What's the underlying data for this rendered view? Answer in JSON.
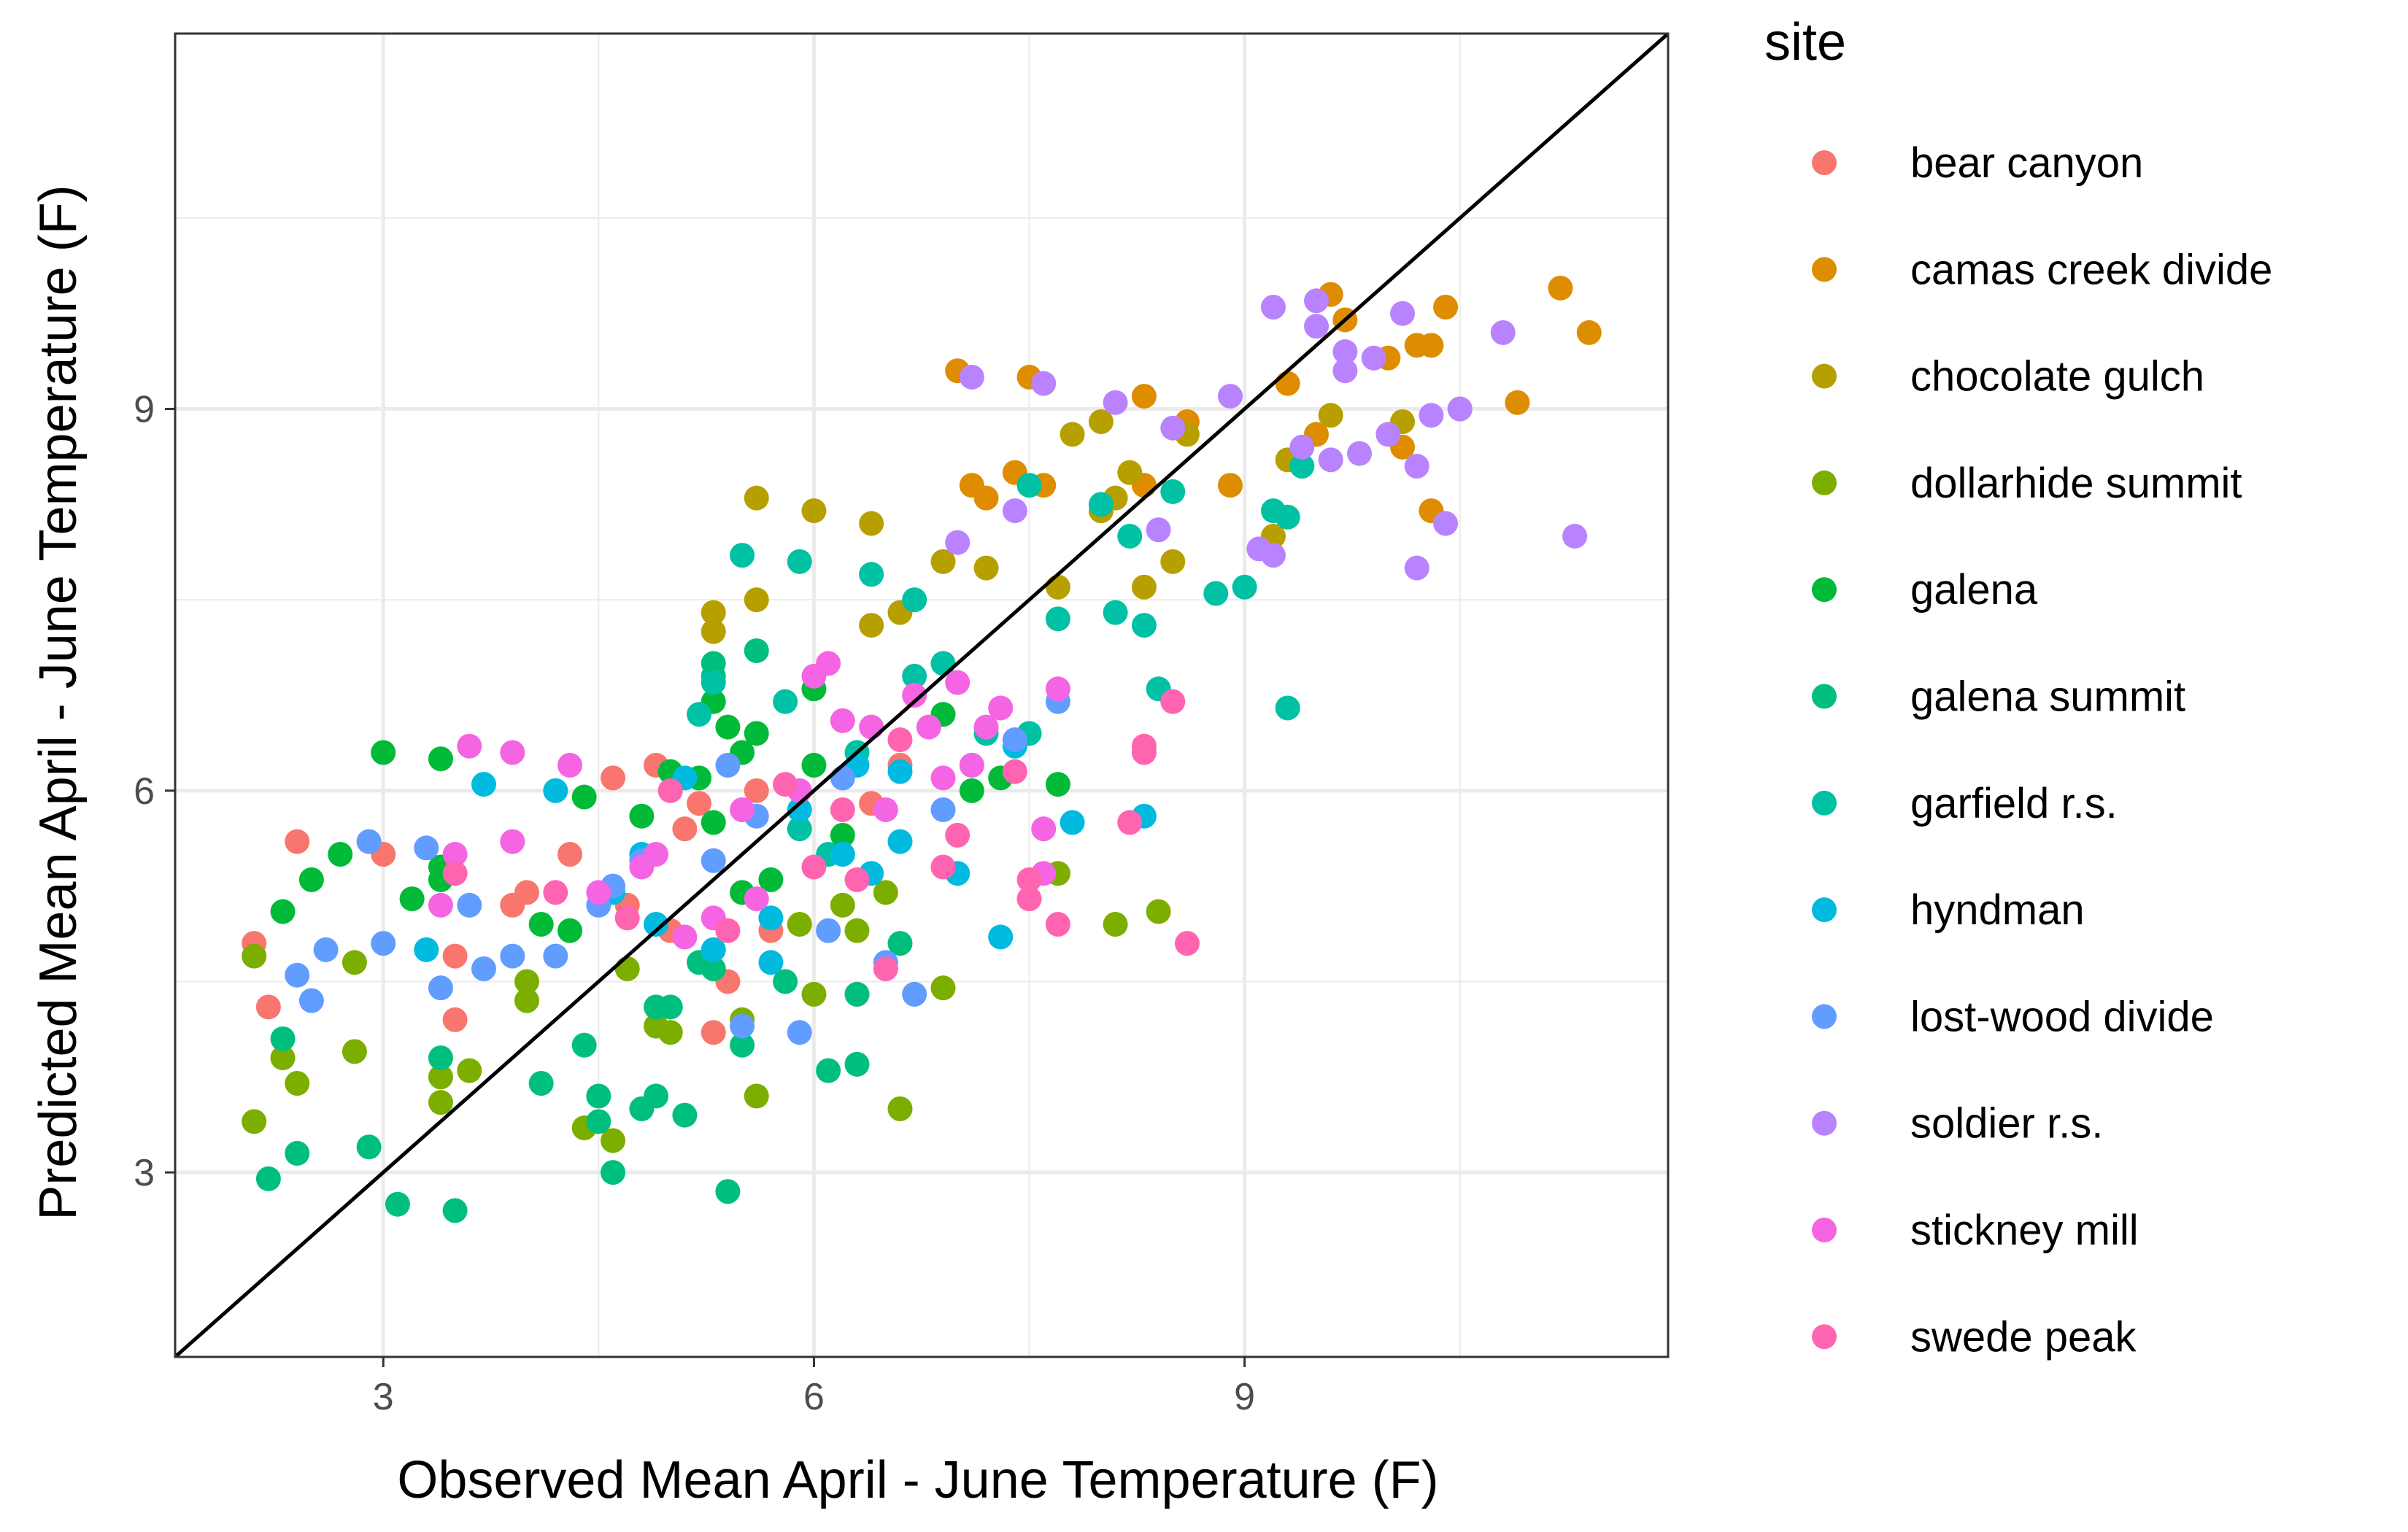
{
  "chart_data": {
    "type": "scatter",
    "xlabel": "Observed Mean April - June Temperature (F)",
    "ylabel": "Predicted Mean April - June Temperature (F)",
    "xlim": [
      1.55,
      11.95
    ],
    "ylim": [
      1.55,
      11.95
    ],
    "x_ticks": [
      3,
      6,
      9
    ],
    "y_ticks": [
      3,
      6,
      9
    ],
    "grid": true,
    "reference_line": "y = x",
    "legend_position": "right",
    "legend_title": "site",
    "series": [
      {
        "name": "bear canyon",
        "color": "#F8766D",
        "points": [
          [
            2.1,
            4.8
          ],
          [
            2.2,
            4.3
          ],
          [
            2.4,
            5.6
          ],
          [
            3.0,
            5.5
          ],
          [
            3.5,
            4.2
          ],
          [
            3.5,
            4.7
          ],
          [
            3.9,
            5.1
          ],
          [
            4.0,
            5.2
          ],
          [
            4.3,
            5.5
          ],
          [
            4.6,
            6.1
          ],
          [
            4.7,
            5.1
          ],
          [
            4.9,
            6.2
          ],
          [
            5.0,
            4.9
          ],
          [
            5.1,
            5.7
          ],
          [
            5.2,
            5.9
          ],
          [
            5.3,
            4.1
          ],
          [
            5.4,
            4.5
          ],
          [
            5.6,
            6.0
          ],
          [
            5.7,
            4.9
          ],
          [
            6.3,
            4.4
          ],
          [
            6.4,
            5.9
          ],
          [
            6.6,
            6.2
          ]
        ]
      },
      {
        "name": "camas creek divide",
        "color": "#DE8C00",
        "points": [
          [
            7.0,
            9.3
          ],
          [
            7.1,
            8.4
          ],
          [
            7.2,
            8.3
          ],
          [
            7.4,
            8.5
          ],
          [
            7.5,
            9.25
          ],
          [
            7.6,
            8.4
          ],
          [
            8.0,
            8.2
          ],
          [
            8.3,
            9.1
          ],
          [
            8.3,
            8.4
          ],
          [
            8.6,
            8.9
          ],
          [
            8.9,
            8.4
          ],
          [
            9.3,
            9.2
          ],
          [
            9.5,
            8.8
          ],
          [
            9.6,
            9.9
          ],
          [
            9.7,
            9.7
          ],
          [
            10.0,
            9.4
          ],
          [
            10.1,
            8.7
          ],
          [
            10.2,
            9.5
          ],
          [
            10.3,
            9.5
          ],
          [
            10.4,
            9.8
          ],
          [
            10.3,
            8.2
          ],
          [
            10.5,
            9.0
          ],
          [
            10.9,
            9.05
          ],
          [
            11.2,
            9.95
          ],
          [
            11.4,
            9.6
          ]
        ]
      },
      {
        "name": "chocolate gulch",
        "color": "#B79F00",
        "points": [
          [
            5.3,
            7.4
          ],
          [
            5.3,
            7.25
          ],
          [
            5.6,
            7.5
          ],
          [
            5.6,
            8.3
          ],
          [
            6.0,
            8.2
          ],
          [
            6.4,
            8.1
          ],
          [
            6.4,
            7.3
          ],
          [
            6.6,
            7.4
          ],
          [
            6.9,
            7.8
          ],
          [
            7.2,
            7.75
          ],
          [
            7.7,
            7.6
          ],
          [
            7.8,
            8.8
          ],
          [
            8.0,
            8.2
          ],
          [
            8.0,
            8.9
          ],
          [
            8.1,
            8.3
          ],
          [
            8.2,
            8.5
          ],
          [
            8.3,
            7.6
          ],
          [
            8.5,
            7.8
          ],
          [
            8.6,
            8.8
          ],
          [
            9.2,
            8.0
          ],
          [
            9.3,
            8.6
          ],
          [
            9.6,
            8.95
          ],
          [
            10.1,
            8.9
          ]
        ]
      },
      {
        "name": "dollarhide summit",
        "color": "#7CAE00",
        "points": [
          [
            2.1,
            3.4
          ],
          [
            2.1,
            4.7
          ],
          [
            2.3,
            3.9
          ],
          [
            2.4,
            3.7
          ],
          [
            2.8,
            4.65
          ],
          [
            2.8,
            3.95
          ],
          [
            3.4,
            3.55
          ],
          [
            3.4,
            3.75
          ],
          [
            3.6,
            3.8
          ],
          [
            4.0,
            4.35
          ],
          [
            4.0,
            4.5
          ],
          [
            4.4,
            3.35
          ],
          [
            4.6,
            3.25
          ],
          [
            4.7,
            4.6
          ],
          [
            4.9,
            4.15
          ],
          [
            5.0,
            4.1
          ],
          [
            5.5,
            4.2
          ],
          [
            5.6,
            3.6
          ],
          [
            5.9,
            4.95
          ],
          [
            6.0,
            4.4
          ],
          [
            6.2,
            5.1
          ],
          [
            6.3,
            4.9
          ],
          [
            6.5,
            5.2
          ],
          [
            6.6,
            3.5
          ],
          [
            6.9,
            4.45
          ],
          [
            7.7,
            5.35
          ],
          [
            8.1,
            4.95
          ],
          [
            8.4,
            5.05
          ]
        ]
      },
      {
        "name": "galena",
        "color": "#00BA38",
        "points": [
          [
            2.3,
            5.05
          ],
          [
            2.5,
            5.3
          ],
          [
            2.7,
            5.5
          ],
          [
            3.0,
            6.3
          ],
          [
            3.2,
            5.15
          ],
          [
            3.4,
            5.4
          ],
          [
            3.4,
            6.25
          ],
          [
            3.4,
            5.3
          ],
          [
            4.4,
            5.95
          ],
          [
            4.8,
            5.8
          ],
          [
            5.0,
            6.15
          ],
          [
            5.2,
            6.1
          ],
          [
            5.3,
            6.7
          ],
          [
            5.3,
            5.75
          ],
          [
            5.4,
            6.5
          ],
          [
            5.5,
            6.3
          ],
          [
            5.6,
            6.45
          ],
          [
            5.5,
            5.2
          ],
          [
            5.7,
            5.3
          ],
          [
            6.0,
            6.2
          ],
          [
            6.0,
            6.8
          ],
          [
            6.2,
            5.65
          ],
          [
            6.9,
            6.6
          ],
          [
            7.1,
            6.0
          ],
          [
            7.3,
            6.1
          ],
          [
            7.7,
            6.05
          ],
          [
            4.1,
            4.95
          ],
          [
            4.3,
            4.9
          ]
        ]
      },
      {
        "name": "galena summit",
        "color": "#00BF7D",
        "points": [
          [
            2.2,
            2.95
          ],
          [
            2.3,
            4.05
          ],
          [
            2.4,
            3.15
          ],
          [
            2.9,
            3.2
          ],
          [
            3.1,
            2.75
          ],
          [
            3.4,
            3.9
          ],
          [
            3.5,
            2.7
          ],
          [
            4.1,
            3.7
          ],
          [
            4.4,
            4.0
          ],
          [
            4.5,
            3.6
          ],
          [
            4.5,
            3.4
          ],
          [
            4.6,
            3.0
          ],
          [
            4.8,
            3.5
          ],
          [
            4.9,
            3.6
          ],
          [
            4.9,
            4.3
          ],
          [
            5.0,
            4.3
          ],
          [
            5.1,
            3.45
          ],
          [
            5.2,
            4.65
          ],
          [
            5.3,
            4.6
          ],
          [
            5.4,
            2.85
          ],
          [
            5.5,
            4.0
          ],
          [
            5.8,
            4.5
          ],
          [
            6.1,
            3.8
          ],
          [
            6.3,
            4.4
          ],
          [
            6.3,
            3.85
          ],
          [
            6.6,
            4.8
          ],
          [
            5.3,
            6.9
          ],
          [
            5.3,
            7.0
          ],
          [
            5.6,
            7.1
          ]
        ]
      },
      {
        "name": "garfield r.s.",
        "color": "#00C1A3",
        "points": [
          [
            5.2,
            6.6
          ],
          [
            5.3,
            6.85
          ],
          [
            5.5,
            7.85
          ],
          [
            5.8,
            6.7
          ],
          [
            5.9,
            7.8
          ],
          [
            6.4,
            7.7
          ],
          [
            6.7,
            7.5
          ],
          [
            6.7,
            6.9
          ],
          [
            6.9,
            7.0
          ],
          [
            7.2,
            6.45
          ],
          [
            7.5,
            8.4
          ],
          [
            7.5,
            6.45
          ],
          [
            7.7,
            7.35
          ],
          [
            8.0,
            8.25
          ],
          [
            8.1,
            7.4
          ],
          [
            8.2,
            8.0
          ],
          [
            8.3,
            7.3
          ],
          [
            8.4,
            6.8
          ],
          [
            8.5,
            8.35
          ],
          [
            8.8,
            7.55
          ],
          [
            9.0,
            7.6
          ],
          [
            9.2,
            8.2
          ],
          [
            9.3,
            8.15
          ],
          [
            9.4,
            8.55
          ],
          [
            9.3,
            6.65
          ],
          [
            5.9,
            5.7
          ],
          [
            6.1,
            5.5
          ],
          [
            6.3,
            6.3
          ]
        ]
      },
      {
        "name": "hyndman",
        "color": "#00BAE0",
        "points": [
          [
            3.3,
            4.75
          ],
          [
            3.7,
            6.05
          ],
          [
            4.2,
            6.0
          ],
          [
            4.8,
            5.5
          ],
          [
            4.9,
            4.95
          ],
          [
            5.1,
            6.1
          ],
          [
            5.3,
            4.75
          ],
          [
            5.7,
            5.0
          ],
          [
            5.7,
            4.65
          ],
          [
            6.2,
            5.5
          ],
          [
            6.3,
            6.2
          ],
          [
            6.4,
            5.35
          ],
          [
            6.6,
            6.15
          ],
          [
            6.6,
            5.6
          ],
          [
            7.0,
            5.35
          ],
          [
            7.3,
            4.85
          ],
          [
            7.4,
            6.35
          ],
          [
            7.8,
            5.75
          ],
          [
            8.3,
            5.8
          ],
          [
            4.6,
            5.2
          ],
          [
            5.9,
            5.85
          ]
        ]
      },
      {
        "name": "lost-wood divide",
        "color": "#619CFF",
        "points": [
          [
            2.4,
            4.55
          ],
          [
            2.5,
            4.35
          ],
          [
            2.6,
            4.75
          ],
          [
            2.9,
            5.6
          ],
          [
            3.0,
            4.8
          ],
          [
            3.3,
            5.55
          ],
          [
            3.4,
            4.45
          ],
          [
            3.6,
            5.1
          ],
          [
            3.7,
            4.6
          ],
          [
            3.9,
            4.7
          ],
          [
            4.2,
            4.7
          ],
          [
            4.5,
            5.1
          ],
          [
            4.6,
            5.25
          ],
          [
            4.8,
            5.45
          ],
          [
            5.3,
            5.45
          ],
          [
            5.4,
            6.2
          ],
          [
            5.5,
            4.15
          ],
          [
            5.6,
            5.8
          ],
          [
            5.9,
            4.1
          ],
          [
            6.1,
            4.9
          ],
          [
            6.2,
            6.1
          ],
          [
            6.5,
            4.65
          ],
          [
            6.7,
            4.4
          ],
          [
            6.9,
            5.85
          ],
          [
            7.1,
            6.2
          ],
          [
            7.4,
            6.4
          ],
          [
            7.7,
            6.7
          ]
        ]
      },
      {
        "name": "soldier r.s.",
        "color": "#B983FF",
        "points": [
          [
            7.0,
            7.95
          ],
          [
            7.1,
            9.25
          ],
          [
            7.4,
            8.2
          ],
          [
            7.6,
            9.2
          ],
          [
            8.1,
            9.05
          ],
          [
            8.4,
            8.05
          ],
          [
            8.5,
            8.85
          ],
          [
            8.9,
            9.1
          ],
          [
            9.1,
            7.9
          ],
          [
            9.2,
            7.85
          ],
          [
            9.2,
            9.8
          ],
          [
            9.4,
            8.7
          ],
          [
            9.5,
            9.85
          ],
          [
            9.5,
            9.65
          ],
          [
            9.6,
            8.6
          ],
          [
            9.7,
            9.45
          ],
          [
            9.7,
            9.3
          ],
          [
            9.8,
            8.65
          ],
          [
            9.9,
            9.4
          ],
          [
            10.0,
            8.8
          ],
          [
            10.1,
            9.75
          ],
          [
            10.2,
            8.55
          ],
          [
            10.3,
            8.95
          ],
          [
            10.4,
            8.1
          ],
          [
            10.2,
            7.75
          ],
          [
            10.5,
            9.0
          ],
          [
            10.8,
            9.6
          ],
          [
            11.3,
            8.0
          ]
        ]
      },
      {
        "name": "stickney mill",
        "color": "#F564E3",
        "points": [
          [
            3.4,
            5.1
          ],
          [
            3.5,
            5.5
          ],
          [
            3.6,
            6.35
          ],
          [
            3.9,
            6.3
          ],
          [
            3.9,
            5.6
          ],
          [
            4.3,
            6.2
          ],
          [
            4.5,
            5.2
          ],
          [
            4.8,
            5.4
          ],
          [
            4.9,
            5.5
          ],
          [
            5.1,
            4.85
          ],
          [
            5.3,
            5.0
          ],
          [
            5.5,
            5.85
          ],
          [
            5.6,
            5.15
          ],
          [
            5.9,
            6.0
          ],
          [
            6.0,
            6.9
          ],
          [
            6.1,
            7.0
          ],
          [
            6.2,
            6.55
          ],
          [
            6.4,
            6.5
          ],
          [
            6.5,
            5.85
          ],
          [
            6.7,
            6.75
          ],
          [
            6.8,
            6.5
          ],
          [
            6.9,
            6.1
          ],
          [
            7.0,
            6.85
          ],
          [
            7.1,
            6.2
          ],
          [
            7.2,
            6.5
          ],
          [
            7.3,
            6.65
          ],
          [
            7.6,
            5.7
          ],
          [
            7.7,
            6.8
          ],
          [
            7.6,
            5.35
          ]
        ]
      },
      {
        "name": "swede peak",
        "color": "#FF64B0",
        "points": [
          [
            3.5,
            5.35
          ],
          [
            4.2,
            5.2
          ],
          [
            4.7,
            5.0
          ],
          [
            5.0,
            6.0
          ],
          [
            5.4,
            4.9
          ],
          [
            5.8,
            6.05
          ],
          [
            6.0,
            5.4
          ],
          [
            6.2,
            5.85
          ],
          [
            6.3,
            5.3
          ],
          [
            6.5,
            4.6
          ],
          [
            6.6,
            6.4
          ],
          [
            7.0,
            5.65
          ],
          [
            7.4,
            6.15
          ],
          [
            7.5,
            5.3
          ],
          [
            7.5,
            5.15
          ],
          [
            7.7,
            4.95
          ],
          [
            8.3,
            6.35
          ],
          [
            8.3,
            6.3
          ],
          [
            8.5,
            6.7
          ],
          [
            8.6,
            4.8
          ],
          [
            8.2,
            5.75
          ],
          [
            6.9,
            5.4
          ]
        ]
      }
    ]
  }
}
